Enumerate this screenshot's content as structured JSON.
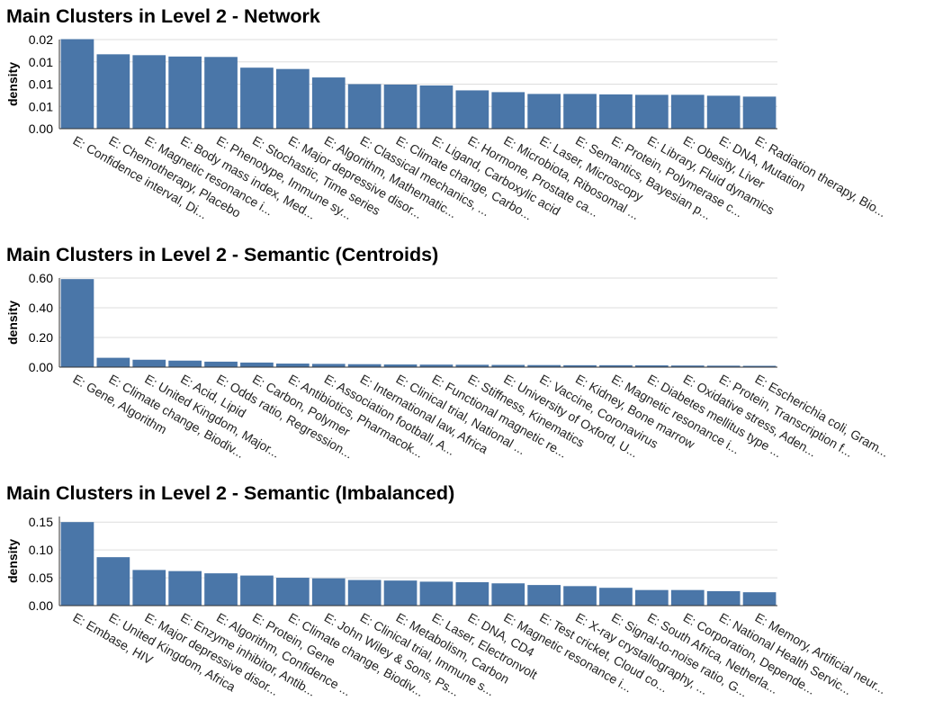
{
  "colors": {
    "bar": "#4a76a8",
    "grid": "#dddddd",
    "axis": "#333333",
    "text": "#000000"
  },
  "chart_data": [
    {
      "type": "bar",
      "title": "Main Clusters in Level 2 - Network",
      "xlabel": "",
      "ylabel": "density",
      "ylim": [
        0,
        0.02
      ],
      "yticks": [
        0,
        0.005,
        0.01,
        0.015,
        0.02
      ],
      "ytick_labels": [
        "0.00",
        "0.01",
        "0.01",
        "0.01",
        "0.02"
      ],
      "grid": true,
      "categories": [
        "E: Confidence interval, Di...",
        "E: Chemotherapy, Placebo",
        "E: Magnetic resonance i...",
        "E: Body mass index, Med...",
        "E: Phenotype, Immune sy...",
        "E: Stochastic, Time series",
        "E: Major depressive disor...",
        "E: Algorithm, Mathematic...",
        "E: Classical mechanics, ...",
        "E: Climate change, Carbo...",
        "E: Ligand, Carboxylic acid",
        "E: Hormone, Prostate ca...",
        "E: Microbiota, Ribosomal ...",
        "E: Laser, Microscopy",
        "E: Semantics, Bayesian p...",
        "E: Protein, Polymerase c...",
        "E: Library, Fluid dynamics",
        "E: Obesity, Liver",
        "E: DNA, Mutation",
        "E: Radiation therapy, Bio..."
      ],
      "values": [
        0.0201,
        0.0167,
        0.0165,
        0.0162,
        0.0161,
        0.0137,
        0.0134,
        0.0115,
        0.01,
        0.0099,
        0.0097,
        0.0086,
        0.0082,
        0.0078,
        0.0078,
        0.0077,
        0.0076,
        0.0076,
        0.0074,
        0.0072
      ]
    },
    {
      "type": "bar",
      "title": "Main Clusters in Level 2 - Semantic (Centroids)",
      "xlabel": "",
      "ylabel": "density",
      "ylim": [
        0,
        0.6
      ],
      "yticks": [
        0,
        0.2,
        0.4,
        0.6
      ],
      "ytick_labels": [
        "0.00",
        "0.20",
        "0.40",
        "0.60"
      ],
      "grid": true,
      "categories": [
        "E: Gene, Algorithm",
        "E: Climate change, Biodiv...",
        "E: United Kingdom, Major...",
        "E: Acid, Lipid",
        "E: Odds ratio, Regression...",
        "E: Carbon, Polymer",
        "E: Antibiotics, Pharmacok...",
        "E: Association football, A...",
        "E: International law, Africa",
        "E: Clinical trial, National ...",
        "E: Functional magnetic re...",
        "E: Stiffness, Kinematics",
        "E: University of Oxford, U...",
        "E: Vaccine, Coronavirus",
        "E: Kidney, Bone marrow",
        "E: Magnetic resonance i...",
        "E: Diabetes mellitus type ...",
        "E: Oxidative stress, Aden...",
        "E: Protein, Transcription f...",
        "E: Escherichia coli, Gram..."
      ],
      "values": [
        0.593,
        0.063,
        0.05,
        0.044,
        0.037,
        0.031,
        0.024,
        0.022,
        0.02,
        0.018,
        0.017,
        0.016,
        0.015,
        0.014,
        0.013,
        0.013,
        0.012,
        0.011,
        0.01,
        0.009
      ]
    },
    {
      "type": "bar",
      "title": "Main Clusters in Level 2 - Semantic (Imbalanced)",
      "xlabel": "",
      "ylabel": "density",
      "ylim": [
        0,
        0.16
      ],
      "yticks": [
        0,
        0.05,
        0.1,
        0.15
      ],
      "ytick_labels": [
        "0.00",
        "0.05",
        "0.10",
        "0.15"
      ],
      "grid": true,
      "categories": [
        "E: Embase, HIV",
        "E: United Kingdom, Africa",
        "E: Major depressive disor...",
        "E: Enzyme inhibitor, Antib...",
        "E: Algorithm, Confidence ...",
        "E: Protein, Gene",
        "E: Climate change, Biodiv...",
        "E: John Wiley & Sons, Ps...",
        "E: Clinical trial, Immune s...",
        "E: Metabolism, Carbon",
        "E: Laser, Electronvolt",
        "E: DNA, CD4",
        "E: Magnetic resonance i...",
        "E: Test cricket, Cloud co...",
        "E: X-ray crystallography, ...",
        "E: Signal-to-noise ratio, G...",
        "E: South Africa, Netherla...",
        "E: Corporation, Depende...",
        "E: National Health Servic...",
        "E: Memory, Artificial neur..."
      ],
      "values": [
        0.15,
        0.087,
        0.064,
        0.062,
        0.058,
        0.054,
        0.05,
        0.049,
        0.046,
        0.045,
        0.043,
        0.042,
        0.04,
        0.037,
        0.035,
        0.032,
        0.028,
        0.028,
        0.026,
        0.024
      ]
    }
  ]
}
